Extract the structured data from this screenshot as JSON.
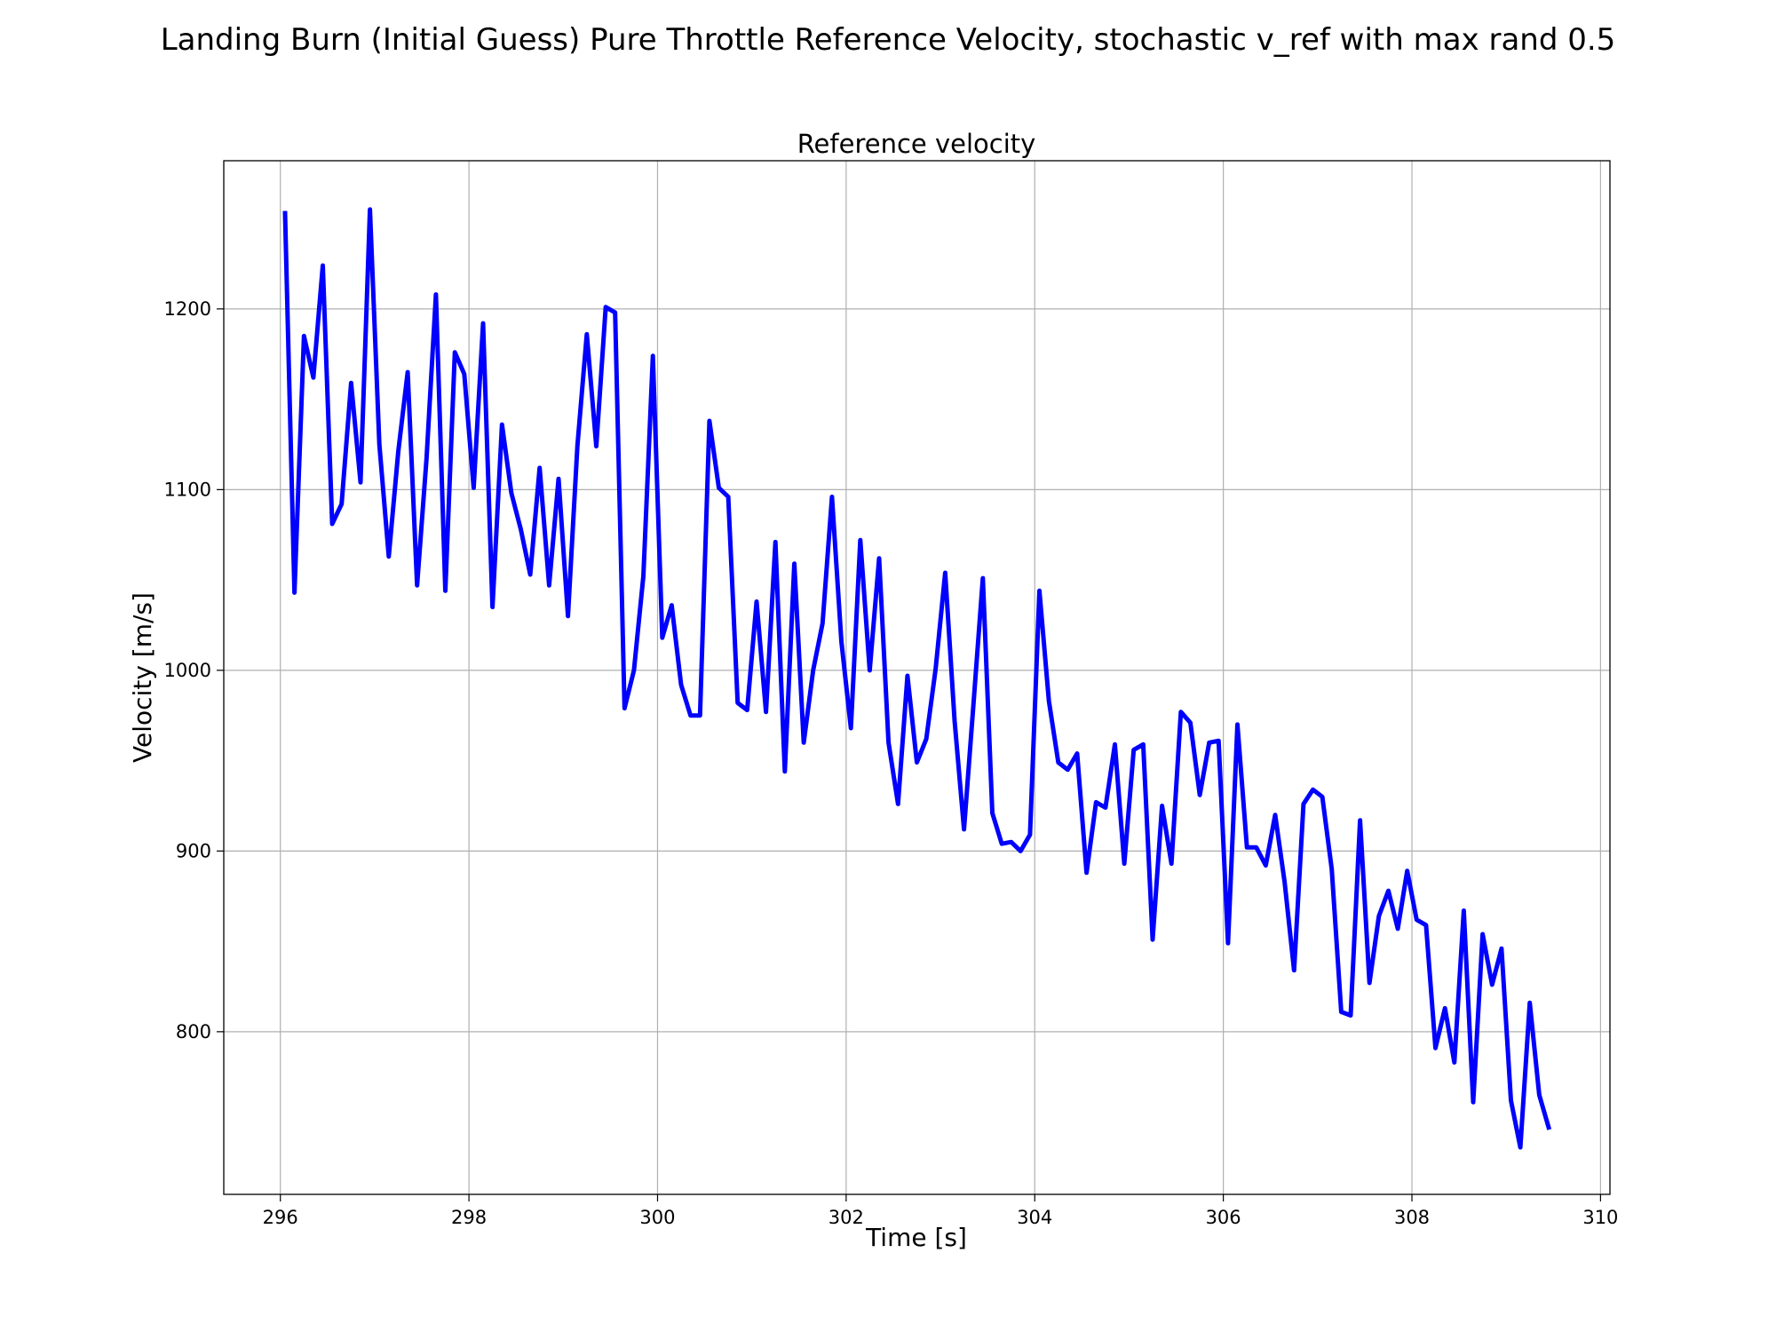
{
  "figure": {
    "suptitle": "Landing Burn (Initial Guess) Pure Throttle Reference Velocity, stochastic v_ref with max rand 0.5"
  },
  "chart_data": {
    "type": "line",
    "title": "Reference velocity",
    "xlabel": "Time [s]",
    "ylabel": "Velocity [m/s]",
    "xlim": [
      295.4,
      310.1
    ],
    "ylim": [
      710,
      1282
    ],
    "xticks": [
      296,
      298,
      300,
      302,
      304,
      306,
      308,
      310
    ],
    "yticks": [
      800,
      900,
      1000,
      1100,
      1200
    ],
    "grid": true,
    "series": [
      {
        "color": "#0000ff",
        "x": [
          296.05,
          296.15,
          296.25,
          296.35,
          296.45,
          296.55,
          296.65,
          296.75,
          296.85,
          296.95,
          297.05,
          297.15,
          297.25,
          297.35,
          297.45,
          297.55,
          297.65,
          297.75,
          297.85,
          297.95,
          298.05,
          298.15,
          298.25,
          298.35,
          298.45,
          298.55,
          298.65,
          298.75,
          298.85,
          298.95,
          299.05,
          299.15,
          299.25,
          299.35,
          299.45,
          299.55,
          299.65,
          299.75,
          299.85,
          299.95,
          300.05,
          300.15,
          300.25,
          300.35,
          300.45,
          300.55,
          300.65,
          300.75,
          300.85,
          300.95,
          301.05,
          301.15,
          301.25,
          301.35,
          301.45,
          301.55,
          301.65,
          301.75,
          301.85,
          301.95,
          302.05,
          302.15,
          302.25,
          302.35,
          302.45,
          302.55,
          302.65,
          302.75,
          302.85,
          302.95,
          303.05,
          303.15,
          303.25,
          303.35,
          303.45,
          303.55,
          303.65,
          303.75,
          303.85,
          303.95,
          304.05,
          304.15,
          304.25,
          304.35,
          304.45,
          304.55,
          304.65,
          304.75,
          304.85,
          304.95,
          305.05,
          305.15,
          305.25,
          305.35,
          305.45,
          305.55,
          305.65,
          305.75,
          305.85,
          305.95,
          306.05,
          306.15,
          306.25,
          306.35,
          306.45,
          306.55,
          306.65,
          306.75,
          306.85,
          306.95,
          307.05,
          307.15,
          307.25,
          307.35,
          307.45,
          307.55,
          307.65,
          307.75,
          307.85,
          307.95,
          308.05,
          308.15,
          308.25,
          308.35,
          308.45,
          308.55,
          308.65,
          308.75,
          308.85,
          308.95,
          309.05,
          309.15,
          309.25,
          309.35,
          309.45
        ],
        "y": [
          1253,
          1043,
          1185,
          1162,
          1224,
          1081,
          1092,
          1159,
          1104,
          1255,
          1125,
          1063,
          1121,
          1165,
          1047,
          1117,
          1208,
          1044,
          1176,
          1164,
          1101,
          1192,
          1035,
          1136,
          1098,
          1078,
          1053,
          1112,
          1047,
          1106,
          1030,
          1124,
          1186,
          1124,
          1201,
          1198,
          979,
          1000,
          1052,
          1174,
          1018,
          1036,
          992,
          975,
          975,
          1138,
          1101,
          1096,
          982,
          978,
          1038,
          977,
          1071,
          944,
          1059,
          960,
          1000,
          1026,
          1096,
          1016,
          968,
          1072,
          1000,
          1062,
          960,
          926,
          997,
          949,
          962,
          1001,
          1054,
          972,
          912,
          981,
          1051,
          921,
          904,
          905,
          900,
          909,
          1044,
          983,
          949,
          945,
          954,
          888,
          927,
          924,
          959,
          893,
          956,
          959,
          851,
          925,
          893,
          977,
          971,
          931,
          960,
          961,
          849,
          970,
          902,
          902,
          892,
          920,
          883,
          834,
          926,
          934,
          930,
          890,
          811,
          809,
          917,
          827,
          864,
          878,
          857,
          889,
          862,
          859,
          791,
          813,
          783,
          867,
          761,
          854,
          826,
          846,
          762,
          736,
          816,
          765,
          747
        ]
      }
    ]
  }
}
